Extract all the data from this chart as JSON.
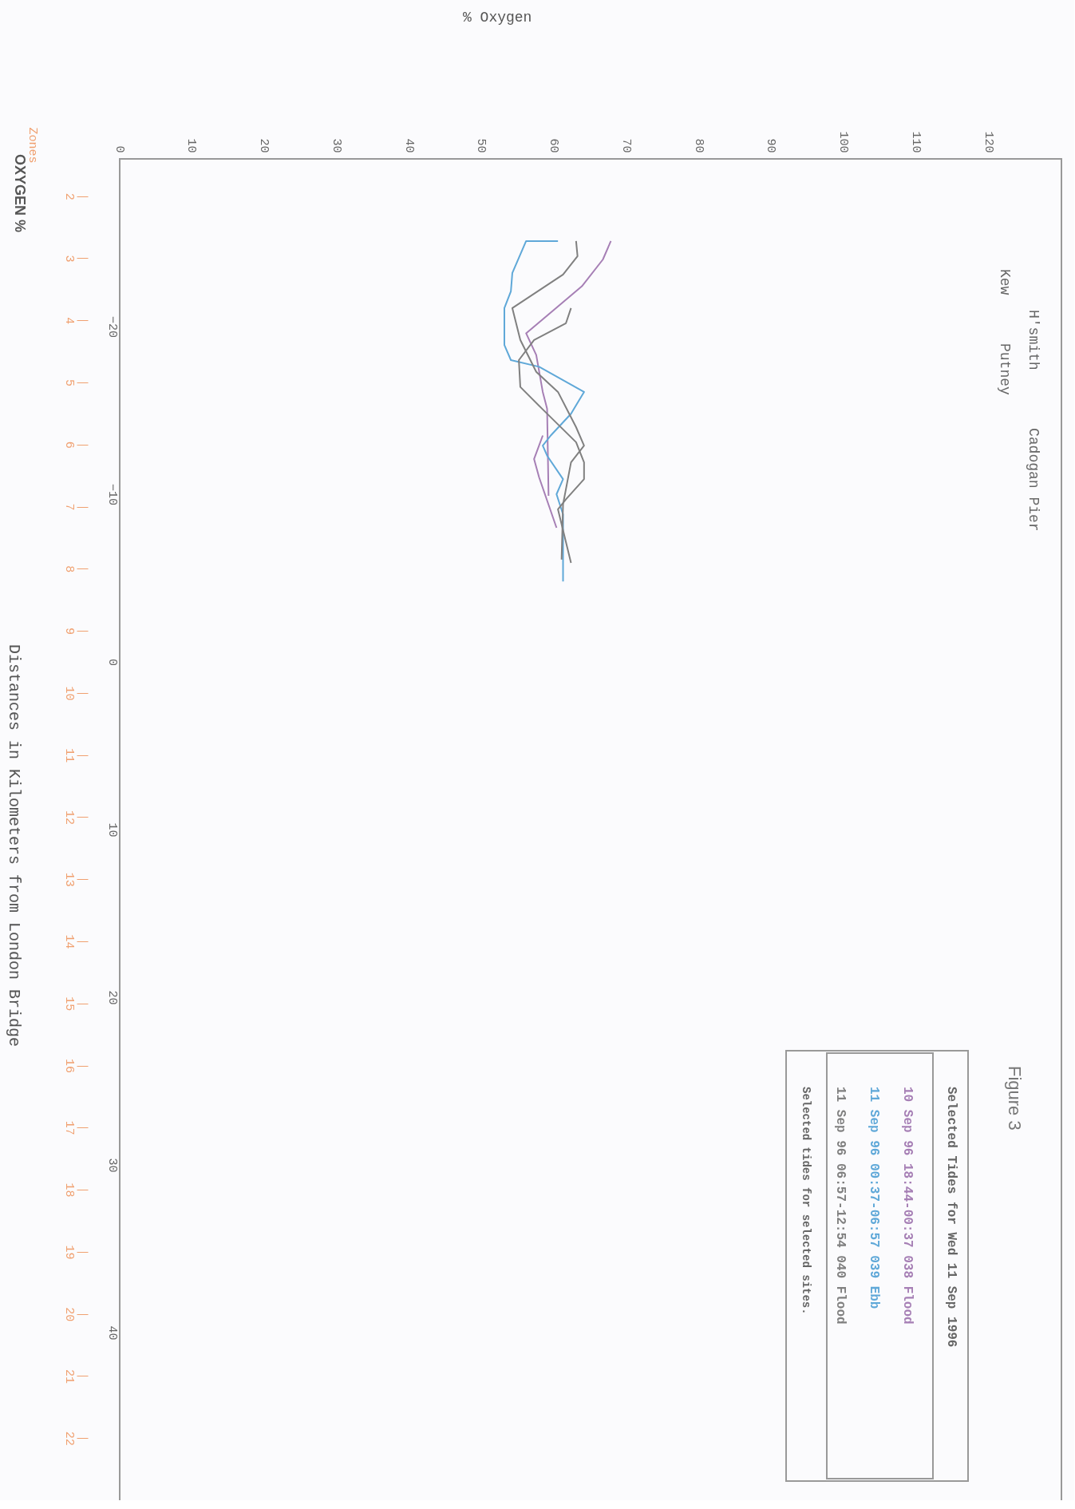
{
  "chart_data": {
    "type": "line",
    "orientation": "horizontal",
    "title": "Figure 3",
    "y2label": "Zones",
    "xlim": [
      0,
      130
    ],
    "xticks": [
      0,
      10,
      20,
      30,
      40,
      50,
      60,
      70,
      80,
      90,
      100,
      110,
      120
    ],
    "ylim": [
      50,
      -30
    ],
    "yticks": [
      -20,
      -10,
      0,
      10,
      20,
      30,
      40
    ],
    "y2lim": [
      23.0,
      1.4
    ],
    "y2ticks": [
      2,
      3,
      4,
      5,
      6,
      7,
      8,
      9,
      10,
      11,
      12,
      13,
      14,
      15,
      16,
      17,
      18,
      19,
      20,
      21,
      22
    ],
    "grid": false,
    "legend": "bottom right",
    "legend_title": "Selected Tides for Wed 11 Sep 1996",
    "series": [
      {
        "name": "10 Sep 96  18:44-00:37  038 Flood",
        "color": "#a67fb5",
        "x": [
          -25.1,
          -24.0,
          -22.4,
          -20.8,
          -19.6,
          -18.3,
          -16.1,
          -15.1,
          -9.9
        ],
        "values": [
          67.8,
          66.7,
          63.8,
          59.4,
          56.1,
          57.5,
          58.4,
          59.0,
          59.2
        ]
      },
      {
        "color": "#a67fb5",
        "x": [
          -13.5,
          -12.1,
          -11.0,
          -8.0
        ],
        "values": [
          58.4,
          57.2,
          57.9,
          60.3
        ]
      },
      {
        "name": "11 Sep 96  00:37-06:57  039 Ebb",
        "color": "#5fa8d8",
        "x": [
          -25.1,
          -25.1,
          -23.2,
          -22.1,
          -21.1,
          -18.9,
          -18.0,
          -17.6,
          -16.1,
          -14.8,
          -13.5,
          -12.9,
          -12.3,
          -10.9,
          -10.0,
          -8.8,
          -4.8
        ],
        "values": [
          60.5,
          56.1,
          54.2,
          54.0,
          53.1,
          53.1,
          54.0,
          57.9,
          64.1,
          62.3,
          59.5,
          58.4,
          59.0,
          61.2,
          60.3,
          61.2,
          61.2
        ]
      },
      {
        "name": "11 Sep 96  06:57-12:54  040 Flood",
        "color": "#808080",
        "x": [
          -25.1,
          -24.2,
          -23.1,
          -21.1,
          -19.2,
          -17.3,
          -16.1,
          -14.0,
          -12.9,
          -11.9,
          -9.4,
          -6.1
        ],
        "values": [
          63.0,
          63.2,
          61.2,
          54.2,
          55.3,
          57.5,
          60.5,
          63.0,
          64.1,
          62.3,
          61.2,
          61.0
        ]
      },
      {
        "color": "#808080",
        "x": [
          -21.1,
          -20.2,
          -19.2,
          -18.0,
          -16.4,
          -15.1,
          -13.1,
          -11.9,
          -10.9,
          -9.7,
          -9.1,
          -5.9
        ],
        "values": [
          62.3,
          61.6,
          57.2,
          55.1,
          55.3,
          58.3,
          63.0,
          64.1,
          64.1,
          61.6,
          60.5,
          62.3
        ]
      }
    ],
    "annotations": [
      "Kew",
      "H'smith",
      "Putney",
      "Cadogan Pier",
      "Selected tides for selected sites.",
      "OXYGEN %",
      "% Oxygen",
      "Distances in Kilometers from London Bridge"
    ]
  }
}
